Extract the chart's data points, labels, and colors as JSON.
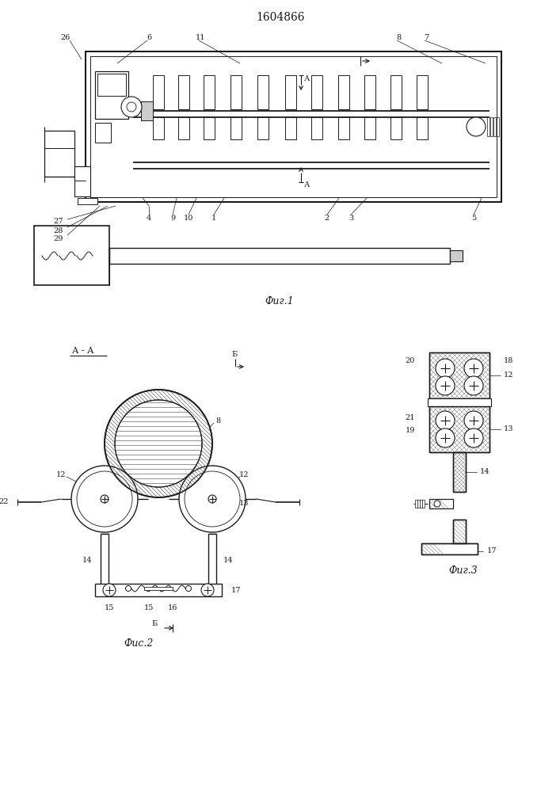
{
  "title": "1604866",
  "fig1_caption": "Фиг.1",
  "fig2_caption": "Фис.2",
  "fig3_caption": "Фиг.3",
  "lc": "#1a1a1a"
}
